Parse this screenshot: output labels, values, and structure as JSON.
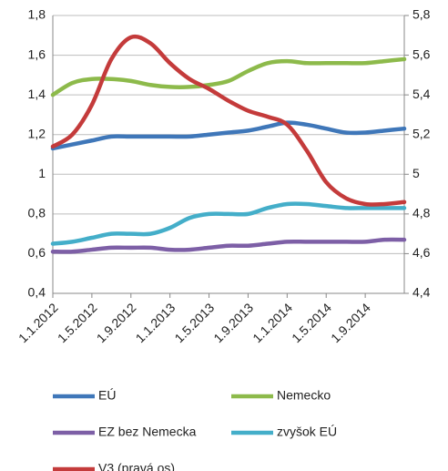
{
  "chart_data": {
    "type": "line",
    "categories": [
      "1.1.2012",
      null,
      "1.5.2012",
      null,
      "1.9.2012",
      null,
      "1.1.2013",
      null,
      "1.5.2013",
      null,
      "1.9.2013",
      null,
      "1.1.2014",
      null,
      "1.5.2014",
      null,
      "1.9.2014",
      null,
      null
    ],
    "series": [
      {
        "name": "EÚ",
        "color": "#3f77b9",
        "values": [
          1.13,
          1.15,
          1.17,
          1.19,
          1.19,
          1.19,
          1.19,
          1.19,
          1.2,
          1.21,
          1.22,
          1.24,
          1.26,
          1.25,
          1.23,
          1.21,
          1.21,
          1.22,
          1.23
        ]
      },
      {
        "name": "Nemecko",
        "color": "#8dba4b",
        "values": [
          1.4,
          1.46,
          1.48,
          1.48,
          1.47,
          1.45,
          1.44,
          1.44,
          1.45,
          1.47,
          1.52,
          1.56,
          1.57,
          1.56,
          1.56,
          1.56,
          1.56,
          1.57,
          1.58
        ]
      },
      {
        "name": "EZ bez Nemecka",
        "color": "#7d5fa6",
        "values": [
          0.61,
          0.61,
          0.62,
          0.63,
          0.63,
          0.63,
          0.62,
          0.62,
          0.63,
          0.64,
          0.64,
          0.65,
          0.66,
          0.66,
          0.66,
          0.66,
          0.66,
          0.67,
          0.67
        ]
      },
      {
        "name": "zvyšok EÚ",
        "color": "#44aec9",
        "values": [
          0.65,
          0.66,
          0.68,
          0.7,
          0.7,
          0.7,
          0.73,
          0.78,
          0.8,
          0.8,
          0.8,
          0.83,
          0.85,
          0.85,
          0.84,
          0.83,
          0.83,
          0.83,
          0.83
        ]
      },
      {
        "name": "V3 (pravá os)",
        "color": "#c43b3b",
        "axis": "y2",
        "values": [
          5.14,
          5.2,
          5.35,
          5.58,
          5.69,
          5.66,
          5.56,
          5.48,
          5.43,
          5.37,
          5.32,
          5.29,
          5.25,
          5.12,
          4.96,
          4.88,
          4.85,
          4.85,
          4.86
        ]
      }
    ],
    "ylim": [
      0.4,
      1.8
    ],
    "yticks": [
      {
        "value": 0.4,
        "label": "0,4"
      },
      {
        "value": 0.6,
        "label": "0,6"
      },
      {
        "value": 0.8,
        "label": "0,8"
      },
      1,
      {
        "value": 1.2,
        "label": "1,2"
      },
      {
        "value": 1.4,
        "label": "1,4"
      },
      {
        "value": 1.6,
        "label": "1,6"
      },
      {
        "value": 1.8,
        "label": "1,8"
      }
    ],
    "y2lim": [
      4.4,
      5.8
    ],
    "y2ticks": [
      {
        "value": 4.4,
        "label": "4,4"
      },
      {
        "value": 4.6,
        "label": "4,6"
      },
      {
        "value": 4.8,
        "label": "4,8"
      },
      5,
      {
        "value": 5.2,
        "label": "5,2"
      },
      {
        "value": 5.4,
        "label": "5,4"
      },
      {
        "value": 5.6,
        "label": "5,6"
      },
      {
        "value": 5.8,
        "label": "5,8"
      }
    ],
    "grid": true
  }
}
